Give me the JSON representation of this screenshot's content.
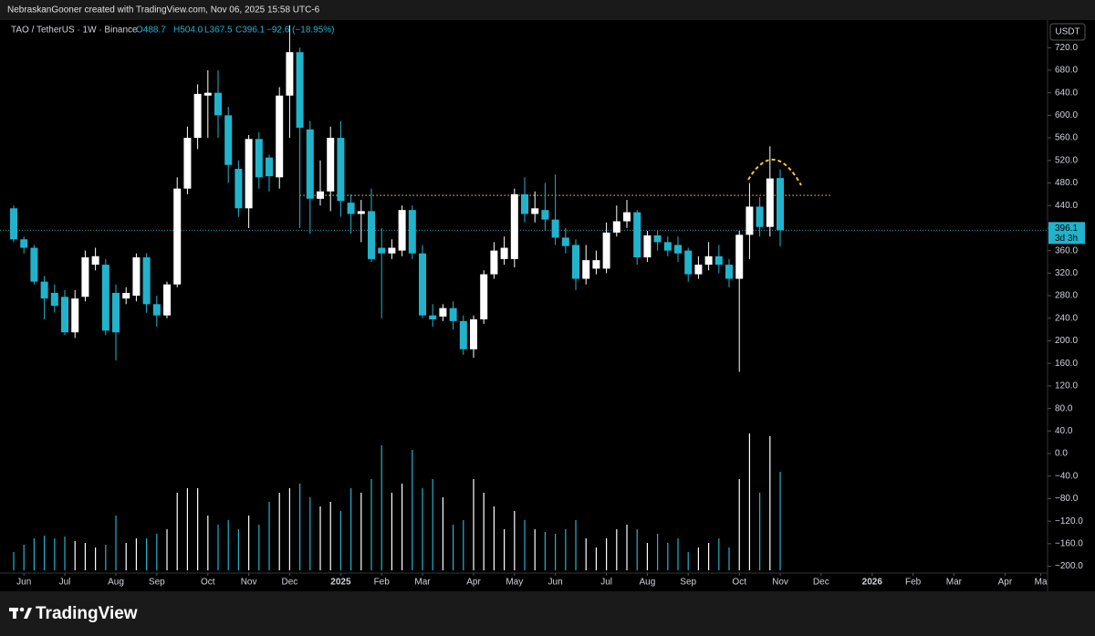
{
  "header": {
    "credit": "NebraskanGooner created with TradingView.com, Nov 06, 2025 15:58 UTC-6"
  },
  "logo": "TradingView",
  "chart_data": {
    "type": "candlestick",
    "legend": {
      "symbol": "TAO / TetherUS · 1W · Binance",
      "open": "O488.7",
      "high": "H504.0",
      "low": "L367.5",
      "close": "C396.1",
      "change": "−92.6 (−18.95%)"
    },
    "currency": "USDT",
    "up_color": "#ffffff",
    "down_color": "#22b3cc",
    "open": [
      435,
      380,
      365,
      305,
      285,
      278,
      215,
      278,
      335,
      335,
      285,
      275,
      280,
      348,
      265,
      245,
      300,
      470,
      560,
      635,
      640,
      600,
      505,
      435,
      558,
      525,
      490,
      635,
      712,
      575,
      452,
      465,
      560,
      445,
      425,
      430,
      365,
      355,
      360,
      432,
      355,
      245,
      243,
      258,
      235,
      185,
      238,
      318,
      345,
      345,
      460,
      425,
      432,
      415,
      383,
      370,
      310,
      328,
      328,
      392,
      412,
      428,
      348,
      387,
      375,
      370,
      360,
      318,
      335,
      350,
      335,
      310,
      388,
      438,
      402,
      488.7
    ],
    "high": [
      440,
      385,
      370,
      315,
      300,
      290,
      290,
      360,
      365,
      345,
      300,
      295,
      355,
      355,
      280,
      305,
      490,
      580,
      655,
      680,
      680,
      615,
      520,
      565,
      570,
      530,
      650,
      760,
      720,
      590,
      520,
      580,
      590,
      460,
      450,
      470,
      400,
      380,
      440,
      440,
      370,
      265,
      265,
      270,
      245,
      245,
      325,
      375,
      385,
      470,
      490,
      465,
      480,
      495,
      400,
      380,
      370,
      360,
      410,
      440,
      450,
      432,
      395,
      395,
      385,
      385,
      365,
      350,
      375,
      370,
      345,
      395,
      480,
      455,
      545,
      504.0
    ],
    "low": [
      375,
      355,
      300,
      238,
      250,
      210,
      205,
      270,
      325,
      210,
      165,
      265,
      270,
      250,
      225,
      240,
      295,
      460,
      540,
      560,
      560,
      480,
      420,
      400,
      470,
      465,
      470,
      560,
      400,
      390,
      440,
      430,
      420,
      390,
      375,
      340,
      240,
      345,
      350,
      345,
      240,
      225,
      235,
      220,
      175,
      170,
      230,
      310,
      335,
      330,
      410,
      410,
      395,
      370,
      355,
      290,
      300,
      318,
      320,
      385,
      400,
      335,
      340,
      360,
      350,
      340,
      305,
      310,
      325,
      320,
      295,
      145,
      345,
      385,
      385,
      367.5
    ],
    "close": [
      380,
      365,
      305,
      275,
      262,
      215,
      275,
      348,
      350,
      218,
      215,
      285,
      348,
      265,
      245,
      300,
      470,
      560,
      638,
      640,
      600,
      512,
      435,
      558,
      490,
      492,
      635,
      712,
      578,
      452,
      465,
      560,
      448,
      425,
      430,
      345,
      355,
      365,
      432,
      355,
      245,
      238,
      258,
      235,
      185,
      238,
      318,
      360,
      365,
      460,
      425,
      435,
      415,
      383,
      368,
      310,
      343,
      343,
      392,
      412,
      428,
      348,
      387,
      375,
      360,
      355,
      318,
      335,
      350,
      335,
      310,
      388,
      438,
      402,
      488,
      396.1
    ],
    "volume": [
      20,
      28,
      35,
      38,
      35,
      37,
      32,
      30,
      25,
      28,
      60,
      30,
      35,
      35,
      40,
      45,
      85,
      90,
      90,
      60,
      50,
      55,
      45,
      60,
      50,
      75,
      85,
      90,
      95,
      80,
      70,
      75,
      65,
      90,
      85,
      100,
      137,
      85,
      95,
      132,
      90,
      100,
      80,
      50,
      55,
      100,
      85,
      70,
      45,
      65,
      55,
      45,
      42,
      40,
      45,
      55,
      35,
      25,
      35,
      45,
      50,
      45,
      30,
      40,
      30,
      35,
      20,
      25,
      30,
      35,
      25,
      100,
      150,
      85,
      147,
      108
    ],
    "level": 458,
    "level_start": 28,
    "level_end": 80,
    "last_price": 396.1,
    "countdown": "3d 3h",
    "xlim": [
      -1.34,
      101.16
    ],
    "xticks": [
      {
        "value": 1,
        "label": "Jun"
      },
      {
        "value": 5,
        "label": "Jul"
      },
      {
        "value": 10,
        "label": "Aug"
      },
      {
        "value": 14,
        "label": "Sep"
      },
      {
        "value": 19,
        "label": "Oct"
      },
      {
        "value": 23,
        "label": "Nov"
      },
      {
        "value": 27,
        "label": "Dec"
      },
      {
        "value": 32,
        "label": "2025"
      },
      {
        "value": 36,
        "label": "Feb"
      },
      {
        "value": 40,
        "label": "Mar"
      },
      {
        "value": 45,
        "label": "Apr"
      },
      {
        "value": 49,
        "label": "May"
      },
      {
        "value": 53,
        "label": "Jun"
      },
      {
        "value": 58,
        "label": "Jul"
      },
      {
        "value": 62,
        "label": "Aug"
      },
      {
        "value": 66,
        "label": "Sep"
      },
      {
        "value": 71,
        "label": "Oct"
      },
      {
        "value": 75,
        "label": "Nov"
      },
      {
        "value": 79,
        "label": "Dec"
      },
      {
        "value": 84,
        "label": "2026"
      },
      {
        "value": 88,
        "label": "Feb"
      },
      {
        "value": 92,
        "label": "Mar"
      },
      {
        "value": 97,
        "label": "Apr"
      },
      {
        "value": 100.5,
        "label": "Ma"
      }
    ],
    "ylim": [
      -212,
      756
    ],
    "yticks": [
      {
        "value": 720,
        "label": "720.0"
      },
      {
        "value": 680,
        "label": "680.0"
      },
      {
        "value": 640,
        "label": "640.0"
      },
      {
        "value": 600,
        "label": "600.0"
      },
      {
        "value": 560,
        "label": "560.0"
      },
      {
        "value": 520,
        "label": "520.0"
      },
      {
        "value": 480,
        "label": "480.0"
      },
      {
        "value": 440,
        "label": "440.0"
      },
      {
        "value": 400,
        "label": "400.0"
      },
      {
        "value": 360,
        "label": "360.0"
      },
      {
        "value": 320,
        "label": "320.0"
      },
      {
        "value": 280,
        "label": "280.0"
      },
      {
        "value": 240,
        "label": "240.0"
      },
      {
        "value": 200,
        "label": "200.0"
      },
      {
        "value": 160,
        "label": "160.0"
      },
      {
        "value": 120,
        "label": "120.0"
      },
      {
        "value": 80,
        "label": "80.0"
      },
      {
        "value": 40,
        "label": "40.0"
      },
      {
        "value": 0,
        "label": "0.0"
      },
      {
        "value": -40,
        "label": "−40.0"
      },
      {
        "value": -80,
        "label": "−80.0"
      },
      {
        "value": -120,
        "label": "−120.0"
      },
      {
        "value": -160,
        "label": "−160.0"
      },
      {
        "value": -200,
        "label": "−200.0"
      }
    ]
  }
}
